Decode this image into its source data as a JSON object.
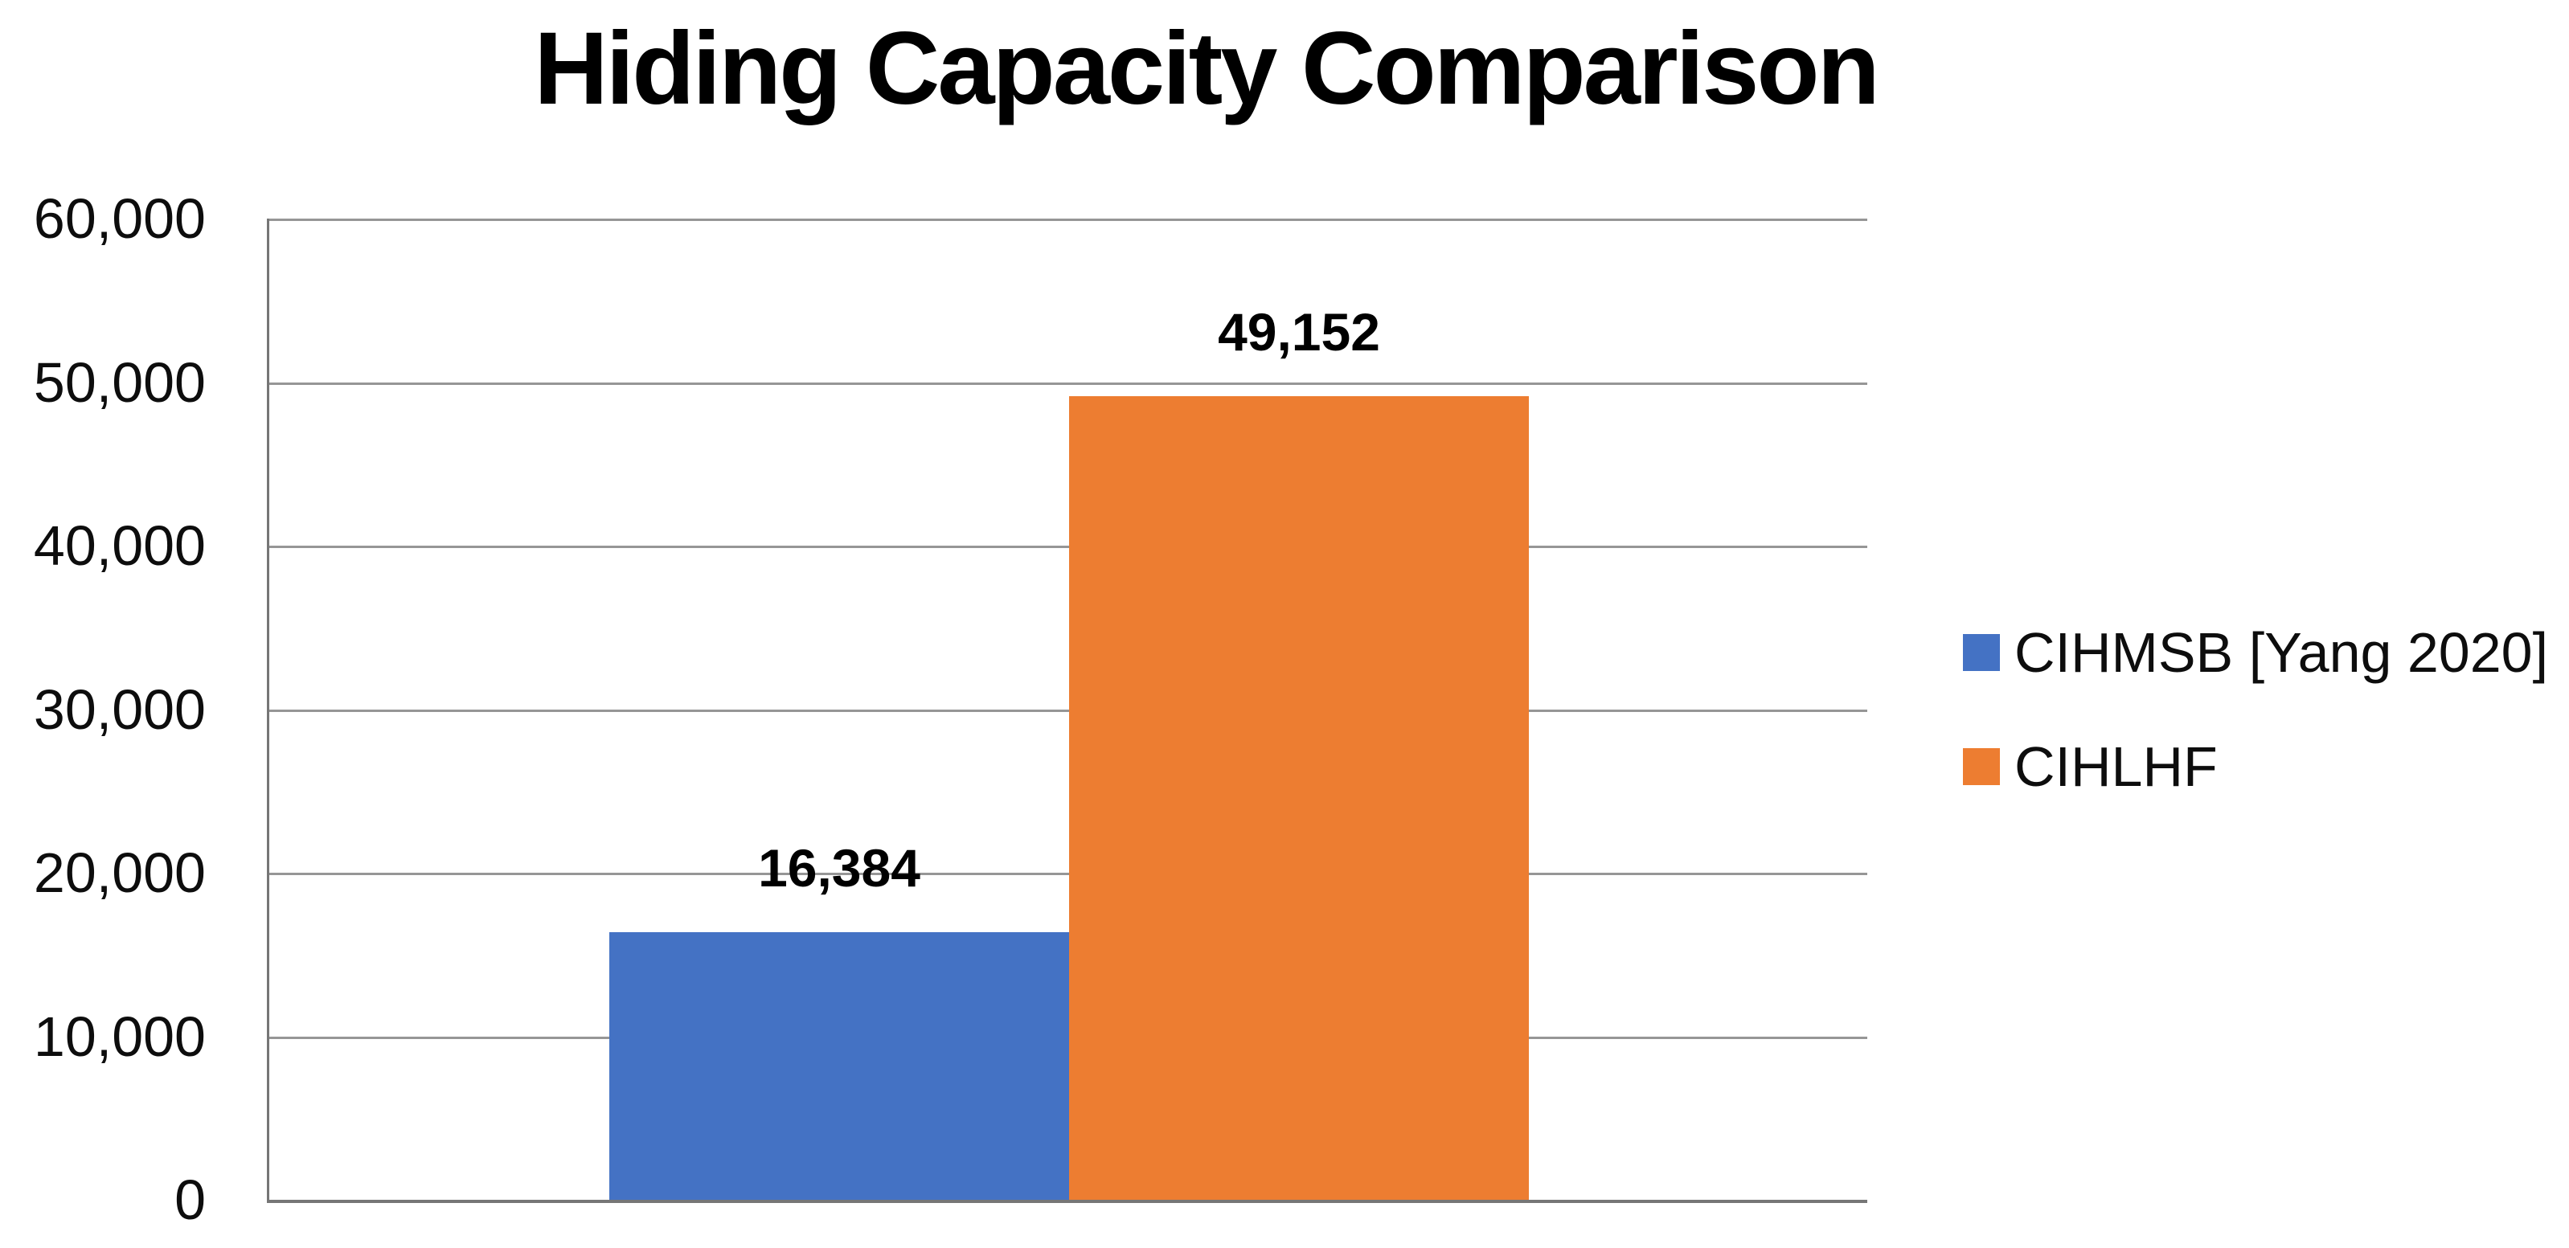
{
  "title": "Hiding Capacity Comparison",
  "colors": {
    "series1": "#4472C4",
    "series2": "#ED7D31",
    "gridline": "#969696",
    "axis": "#767676",
    "text": "#000000"
  },
  "chart_data": {
    "type": "bar",
    "title": "Hiding Capacity Comparison",
    "categories": [
      ""
    ],
    "series": [
      {
        "name": "CIHMSB [Yang 2020]",
        "values": [
          16384
        ],
        "data_label": "16,384",
        "color": "#4472C4"
      },
      {
        "name": "CIHLHF",
        "values": [
          49152
        ],
        "data_label": "49,152",
        "color": "#ED7D31"
      }
    ],
    "ylim": [
      0,
      60000
    ],
    "ytick_interval": 10000,
    "ytick_labels": [
      "0",
      "10,000",
      "20,000",
      "30,000",
      "40,000",
      "50,000",
      "60,000"
    ],
    "grid": "horizontal",
    "legend_position": "right",
    "legend": [
      {
        "label": "CIHMSB [Yang 2020]",
        "color": "#4472C4"
      },
      {
        "label": "CIHLHF",
        "color": "#ED7D31"
      }
    ]
  }
}
